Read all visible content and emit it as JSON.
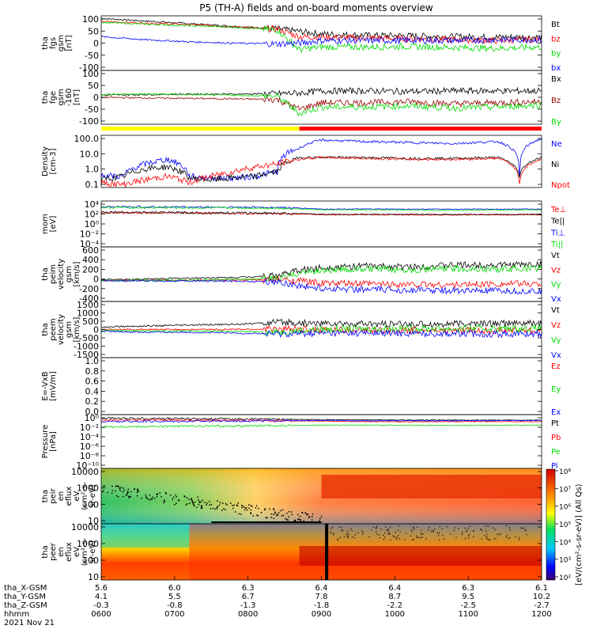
{
  "title": "P5 (TH-A) fields and on-board moments overview",
  "chart_data": [
    {
      "type": "line",
      "panel": "fgs-gsm",
      "ylabel": [
        "tha",
        "fgs",
        "gsm",
        "[nT]"
      ],
      "yticks": [
        "100",
        "50",
        "0",
        "-50",
        "-100"
      ],
      "ylim": [
        -100,
        110
      ],
      "x": [
        600,
        660,
        720,
        780,
        840,
        870,
        900,
        960,
        1020,
        1080,
        1140,
        1200
      ],
      "series": [
        {
          "name": "Bt",
          "color": "#000000",
          "values": [
            100,
            90,
            80,
            70,
            60,
            50,
            40,
            35,
            33,
            30,
            28,
            28
          ]
        },
        {
          "name": "bz",
          "color": "#ff0000",
          "values": [
            88,
            82,
            76,
            68,
            58,
            30,
            28,
            25,
            22,
            18,
            15,
            20
          ]
        },
        {
          "name": "by",
          "color": "#00dd00",
          "values": [
            85,
            78,
            72,
            66,
            56,
            -20,
            -10,
            -10,
            -8,
            -12,
            -15,
            -10
          ]
        },
        {
          "name": "bx",
          "color": "#0000ff",
          "values": [
            30,
            18,
            10,
            5,
            2,
            5,
            15,
            15,
            15,
            15,
            18,
            18
          ]
        }
      ]
    },
    {
      "type": "line",
      "panel": "fge-gsm",
      "ylabel": [
        "tha",
        "fge",
        "gsm",
        "-160",
        "[nT]"
      ],
      "yticks": [
        "100",
        "50",
        "0",
        "-50",
        "-100"
      ],
      "ylim": [
        -130,
        120
      ],
      "x": [
        600,
        660,
        720,
        780,
        840,
        870,
        900,
        960,
        1020,
        1080,
        1140,
        1200
      ],
      "series": [
        {
          "name": "Bx",
          "color": "#000000",
          "values": [
            5,
            8,
            10,
            10,
            12,
            15,
            25,
            25,
            22,
            25,
            25,
            25
          ]
        },
        {
          "name": "Bz",
          "color": "#990000",
          "values": [
            -5,
            -8,
            -10,
            -12,
            -15,
            -60,
            -30,
            -30,
            -25,
            -35,
            -30,
            -25
          ]
        },
        {
          "name": "By",
          "color": "#00dd00",
          "values": [
            8,
            10,
            8,
            5,
            0,
            -80,
            -50,
            -50,
            -45,
            -55,
            -50,
            -40
          ]
        }
      ]
    },
    {
      "type": "line",
      "panel": "density",
      "ylabel": [
        "Density",
        "[cm-3]"
      ],
      "yticks": [
        "100.0",
        "10.0",
        "1.0",
        "0.1"
      ],
      "yscale": "log",
      "ylim": [
        0.1,
        200
      ],
      "x": [
        600,
        630,
        660,
        690,
        720,
        750,
        780,
        810,
        840,
        870,
        900,
        960,
        1020,
        1080,
        1140,
        1170,
        1200
      ],
      "series": [
        {
          "name": "Ne",
          "color": "#0000ff",
          "values": [
            0.6,
            0.5,
            3,
            6,
            0.5,
            0.4,
            0.4,
            0.5,
            1,
            30,
            100,
            80,
            70,
            60,
            80,
            0.5,
            120
          ]
        },
        {
          "name": "Ni",
          "color": "#000000",
          "values": [
            0.3,
            0.5,
            1.5,
            2,
            0.4,
            0.3,
            0.4,
            0.5,
            1,
            8,
            8,
            8,
            7,
            7,
            8,
            0.5,
            8
          ]
        },
        {
          "name": "Npot",
          "color": "#ff0000",
          "values": [
            0.2,
            0.15,
            0.3,
            0.5,
            0.2,
            0.5,
            1,
            2,
            3,
            6,
            8,
            7,
            6,
            6,
            7,
            0.2,
            6
          ]
        }
      ]
    },
    {
      "type": "line",
      "panel": "temperature",
      "ylabel": [
        "mom",
        "[eV]"
      ],
      "yticks": [
        "10⁴",
        "10²",
        "10⁰",
        "10⁻²",
        "10⁻⁴"
      ],
      "yscale": "log",
      "ylim": [
        0.0001,
        50000
      ],
      "x": [
        600,
        720,
        840,
        900,
        960,
        1080,
        1200
      ],
      "series": [
        {
          "name": "Te⊥",
          "color": "#ff0000",
          "values": [
            300,
            250,
            200,
            120,
            120,
            110,
            120
          ]
        },
        {
          "name": "Te||",
          "color": "#000000",
          "values": [
            400,
            300,
            250,
            150,
            150,
            140,
            150
          ]
        },
        {
          "name": "Ti⊥",
          "color": "#0000ff",
          "values": [
            4000,
            3500,
            3000,
            1500,
            1500,
            1400,
            1500
          ]
        },
        {
          "name": "Ti||",
          "color": "#00dd00",
          "values": [
            3000,
            2500,
            2200,
            1000,
            1000,
            900,
            1000
          ]
        }
      ]
    },
    {
      "type": "line",
      "panel": "peim-velocity",
      "ylabel": [
        "tha",
        "peim",
        "velocity",
        "gsm",
        "[km/s]"
      ],
      "yticks": [
        "600",
        "400",
        "200",
        "0",
        "-200",
        "-400"
      ],
      "ylim": [
        -400,
        650
      ],
      "x": [
        600,
        660,
        720,
        780,
        840,
        870,
        900,
        960,
        1020,
        1080,
        1140,
        1200
      ],
      "series": [
        {
          "name": "Vt",
          "color": "#000000",
          "values": [
            20,
            30,
            50,
            60,
            100,
            200,
            250,
            280,
            260,
            300,
            300,
            320
          ]
        },
        {
          "name": "Vz",
          "color": "#ff0000",
          "values": [
            0,
            5,
            10,
            10,
            20,
            0,
            -50,
            -60,
            -70,
            -80,
            -60,
            -60
          ]
        },
        {
          "name": "Vy",
          "color": "#00dd00",
          "values": [
            0,
            5,
            10,
            20,
            40,
            150,
            200,
            220,
            210,
            230,
            220,
            240
          ]
        },
        {
          "name": "Vx",
          "color": "#0000ff",
          "values": [
            0,
            -5,
            -5,
            -10,
            -20,
            -100,
            -150,
            -170,
            -180,
            -190,
            -200,
            -210
          ]
        }
      ]
    },
    {
      "type": "line",
      "panel": "peem-velocity",
      "ylabel": [
        "tha",
        "peem",
        "velocity",
        "gsm",
        "[km/s]"
      ],
      "yticks": [
        "1500",
        "1000",
        "500",
        "0",
        "-500",
        "-1000",
        "-1500"
      ],
      "ylim": [
        -1600,
        1600
      ],
      "x": [
        600,
        660,
        720,
        780,
        840,
        900,
        960,
        1020,
        1080,
        1140,
        1200
      ],
      "series": [
        {
          "name": "Vt",
          "color": "#000000",
          "values": [
            150,
            200,
            250,
            300,
            400,
            350,
            300,
            300,
            320,
            350,
            350
          ]
        },
        {
          "name": "Vz",
          "color": "#ff0000",
          "values": [
            0,
            0,
            0,
            10,
            20,
            0,
            -50,
            -50,
            -60,
            -50,
            -50
          ]
        },
        {
          "name": "Vy",
          "color": "#00dd00",
          "values": [
            -50,
            -80,
            -80,
            -100,
            -150,
            0,
            50,
            50,
            50,
            60,
            60
          ]
        },
        {
          "name": "Vx",
          "color": "#0000ff",
          "values": [
            -100,
            -150,
            -150,
            -200,
            -250,
            -200,
            -200,
            -220,
            -230,
            -250,
            -250
          ]
        }
      ]
    },
    {
      "type": "line",
      "panel": "efield",
      "ylabel": [
        "E=-VxB",
        "[mV/m]"
      ],
      "yticks": [
        "1.0",
        "0.8",
        "0.6",
        "0.4",
        "0.2",
        "0.0"
      ],
      "ylim": [
        -0.02,
        1.0
      ],
      "x": [],
      "series": [
        {
          "name": "Ez",
          "color": "#ff0000",
          "values": []
        },
        {
          "name": "Ey",
          "color": "#00dd00",
          "values": []
        },
        {
          "name": "Ex",
          "color": "#0000ff",
          "values": []
        }
      ]
    },
    {
      "type": "line",
      "panel": "pressure",
      "ylabel": [
        "Pressure",
        "[nPa]"
      ],
      "yticks": [
        "10⁰",
        "10⁻²",
        "10⁻⁴",
        "10⁻⁶",
        "10⁻⁸",
        "10⁻¹⁰"
      ],
      "yscale": "log",
      "ylim": [
        1e-10,
        5
      ],
      "x": [
        600,
        720,
        840,
        900,
        960,
        1080,
        1200
      ],
      "series": [
        {
          "name": "Pt",
          "color": "#000000",
          "values": [
            1.0,
            0.8,
            0.6,
            0.5,
            0.45,
            0.4,
            0.4
          ]
        },
        {
          "name": "Pb",
          "color": "#ff0000",
          "values": [
            0.5,
            0.4,
            0.3,
            0.25,
            0.2,
            0.2,
            0.2
          ]
        },
        {
          "name": "Pe",
          "color": "#00dd00",
          "values": [
            0.02,
            0.025,
            0.03,
            0.04,
            0.04,
            0.035,
            0.04
          ]
        },
        {
          "name": "Pi",
          "color": "#0000ff",
          "values": [
            0.2,
            0.25,
            0.3,
            0.35,
            0.3,
            0.3,
            0.35
          ]
        }
      ]
    },
    {
      "type": "heatmap",
      "panel": "peir-spectrogram",
      "ylabel": [
        "tha",
        "peir",
        "en",
        "eflux",
        "eV",
        "(cm²-s-",
        "sr-eV)"
      ],
      "yticks": [
        "10000",
        "1000",
        "100",
        "10"
      ],
      "yscale": "log",
      "ylim": [
        5,
        25000
      ]
    },
    {
      "type": "heatmap",
      "panel": "peer-spectrogram",
      "ylabel": [
        "tha",
        "peer",
        "en",
        "eflux",
        "eV",
        "(cm²-s-",
        "sr-eV)"
      ],
      "yticks": [
        "10000",
        "1000",
        "100",
        "10"
      ],
      "yscale": "log",
      "ylim": [
        5,
        25000
      ]
    }
  ],
  "colorbar": {
    "ticks": [
      "10⁸",
      "10⁷",
      "10⁶",
      "10⁵",
      "10⁴",
      "10³",
      "10²"
    ],
    "label": "[eV/(cm²-s-sr-eV)] (All Qs)"
  },
  "state_bar": {
    "yellow_until": 870,
    "red_from": 870
  },
  "xaxis": {
    "rows": [
      {
        "label": "tha_X-GSM",
        "values": [
          "5.6",
          "6.0",
          "6.3",
          "6.4",
          "6.4",
          "6.3",
          "6.1"
        ]
      },
      {
        "label": "tha_Y-GSM",
        "values": [
          "4.1",
          "5.5",
          "6.7",
          "7.8",
          "8.7",
          "9.5",
          "10.2"
        ]
      },
      {
        "label": "tha_Z-GSM",
        "values": [
          "-0.3",
          "-0.8",
          "-1.3",
          "-1.8",
          "-2.2",
          "-2.5",
          "-2.7"
        ]
      },
      {
        "label": "hhmm",
        "values": [
          "0600",
          "0700",
          "0800",
          "0900",
          "1000",
          "1100",
          "1200"
        ]
      }
    ],
    "date": "2021 Nov 21"
  },
  "colors": {
    "black": "#000000",
    "red": "#ff0000",
    "green": "#00dd00",
    "blue": "#0000ff",
    "darkred": "#990000"
  }
}
